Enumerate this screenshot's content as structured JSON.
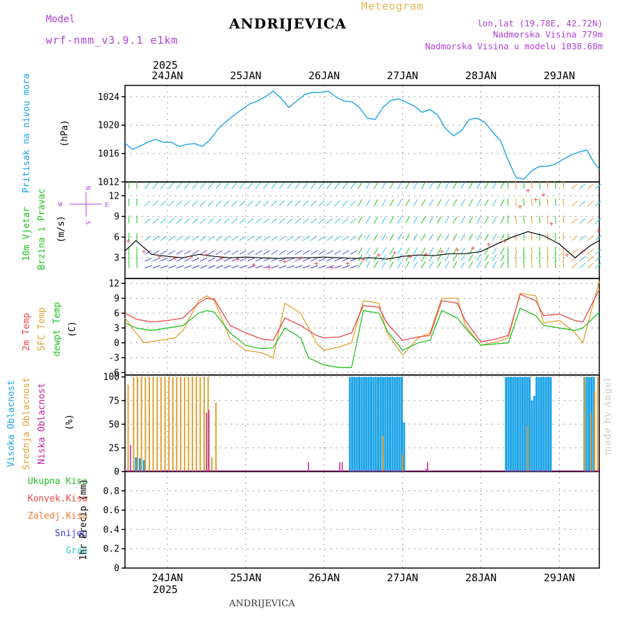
{
  "header": {
    "heading": "Meteogram",
    "title": "ANDRIJEVICA",
    "model_label": "Model",
    "model_name": "wrf-nmm_v3.9.1 e1km",
    "lonlat": "lon,lat (19.78E, 42.72N)",
    "elevation": "Nadmorska Visina 779m",
    "elevation_model": "Nadmorska Visina u modelu 1038.68m",
    "credit": "made by Angel",
    "bottom_title": "ANDRIJEVICA"
  },
  "time_axis": {
    "year": "2025",
    "day_labels": [
      "24JAN",
      "25JAN",
      "26JAN",
      "27JAN",
      "28JAN",
      "29JAN"
    ],
    "day_positions": [
      1,
      2,
      3,
      4,
      5,
      6
    ],
    "range": [
      0.46,
      6.51
    ]
  },
  "colors": {
    "pressure": "#1aa3e8",
    "wind_speed": "#000000",
    "gust": "#e84848",
    "temp2m": "#e84848",
    "sfc_temp": "#e0a030",
    "dewpoint": "#22c022",
    "high_cloud": "#1aa3e8",
    "mid_cloud": "#e0a030",
    "low_cloud": "#c020a0",
    "total_precip": "#22c022",
    "conv_precip": "#e84848",
    "frozen_precip": "#f08030",
    "snow": "#4040e0",
    "hail": "#30c8c8"
  },
  "panels": {
    "pressure": {
      "ylabel": "Pritisak na nivou mora",
      "unit": "(hPa)",
      "ylim": [
        1012,
        1025.6
      ],
      "yticks": [
        1012,
        1016,
        1020,
        1024
      ]
    },
    "wind": {
      "ylabel1": "10m Vjetar",
      "ylabel2": "Brzina i Pravac",
      "unit": "(m/s)",
      "compass": {
        "n": "N",
        "s": "S",
        "w": "W",
        "e": "E"
      },
      "ylim": [
        0,
        14
      ],
      "yticks": [
        3,
        6,
        9,
        12
      ]
    },
    "temperature": {
      "ylabel1": "2m Temp",
      "ylabel2": "SFC Temp",
      "ylabel3": "dewpt Temp",
      "unit": "(C)",
      "ylim": [
        -6.5,
        13
      ],
      "yticks": [
        -6,
        -3,
        0,
        3,
        6,
        9,
        12
      ]
    },
    "clouds": {
      "ylabel1": "Visoka Oblacnost",
      "ylabel2": "Srednja Oblacnost",
      "ylabel3": "Niska Oblacnost",
      "unit": "(%)",
      "ylim": [
        0,
        102
      ],
      "yticks": [
        0,
        25,
        50,
        75,
        100
      ]
    },
    "precip": {
      "unit": "1hr Precip (mm)",
      "ylim": [
        0,
        1
      ],
      "yticks": [
        "0",
        "0.2",
        "0.4",
        "0.6",
        "0.8"
      ],
      "legend": [
        "Ukupna Kisa",
        "Konvek.Kisa",
        "Zaledj.Kisa",
        "Snijeg",
        "Grad"
      ]
    }
  },
  "chart_data": [
    {
      "type": "line",
      "name": "pressure",
      "x": [
        0.46,
        0.55,
        0.65,
        0.75,
        0.85,
        0.95,
        1.05,
        1.15,
        1.25,
        1.35,
        1.45,
        1.55,
        1.65,
        1.75,
        1.85,
        1.95,
        2.05,
        2.15,
        2.25,
        2.35,
        2.45,
        2.55,
        2.65,
        2.75,
        2.85,
        2.95,
        3.05,
        3.15,
        3.25,
        3.35,
        3.45,
        3.55,
        3.65,
        3.75,
        3.85,
        3.95,
        4.05,
        4.15,
        4.25,
        4.35,
        4.45,
        4.55,
        4.65,
        4.75,
        4.85,
        4.95,
        5.05,
        5.15,
        5.25,
        5.35,
        5.45,
        5.55,
        5.65,
        5.75,
        5.85,
        5.95,
        6.05,
        6.15,
        6.25,
        6.35,
        6.45,
        6.51
      ],
      "values": [
        1017.5,
        1016.6,
        1017.0,
        1017.6,
        1018.0,
        1017.6,
        1017.6,
        1017.0,
        1017.3,
        1017.4,
        1017.0,
        1018.0,
        1019.5,
        1020.5,
        1021.4,
        1022.2,
        1023.0,
        1023.4,
        1024.0,
        1024.8,
        1023.8,
        1022.5,
        1023.4,
        1024.3,
        1024.6,
        1024.6,
        1024.8,
        1024.0,
        1023.4,
        1023.3,
        1022.5,
        1021.0,
        1020.8,
        1022.5,
        1023.5,
        1023.7,
        1023.2,
        1022.7,
        1021.8,
        1022.2,
        1021.4,
        1019.5,
        1018.5,
        1019.2,
        1020.8,
        1021.0,
        1020.4,
        1019.0,
        1017.8,
        1015.0,
        1012.6,
        1012.4,
        1013.6,
        1014.2,
        1014.2,
        1014.5,
        1015.2,
        1015.8,
        1016.2,
        1016.5,
        1014.6,
        1013.8
      ]
    },
    {
      "type": "line",
      "name": "wind_speed",
      "x": [
        0.46,
        0.6,
        0.8,
        1.0,
        1.2,
        1.4,
        1.6,
        1.8,
        2.0,
        2.2,
        2.4,
        2.6,
        2.8,
        3.0,
        3.2,
        3.4,
        3.6,
        3.8,
        4.0,
        4.2,
        4.4,
        4.6,
        4.8,
        5.0,
        5.2,
        5.4,
        5.6,
        5.8,
        6.0,
        6.2,
        6.4,
        6.51
      ],
      "values": [
        4.0,
        5.5,
        3.5,
        3.2,
        3.0,
        3.5,
        3.2,
        3.0,
        3.1,
        3.0,
        2.9,
        3.0,
        3.0,
        3.1,
        3.0,
        2.9,
        3.0,
        2.8,
        3.2,
        3.4,
        3.3,
        3.6,
        3.6,
        3.9,
        5.0,
        6.0,
        6.8,
        6.2,
        5.0,
        3.0,
        4.8,
        5.5
      ]
    },
    {
      "type": "scatter",
      "name": "gust",
      "x": [
        0.5,
        0.7,
        0.9,
        1.1,
        1.3,
        1.5,
        1.7,
        1.9,
        2.1,
        2.3,
        2.5,
        2.7,
        2.9,
        3.1,
        3.3,
        3.5,
        3.7,
        3.9,
        4.1,
        4.3,
        4.5,
        4.7,
        4.9,
        5.1,
        5.3,
        5.5,
        5.6,
        5.7,
        5.8,
        5.9,
        6.1,
        6.3,
        6.5
      ],
      "values": [
        5.5,
        4.0,
        3.2,
        3.0,
        3.2,
        3.5,
        3.0,
        2.8,
        2.0,
        1.6,
        2.5,
        3.0,
        2.2,
        1.6,
        2.2,
        2.8,
        3.5,
        3.8,
        3.2,
        3.6,
        4.0,
        4.2,
        4.5,
        5.0,
        5.5,
        10.5,
        12.8,
        11.5,
        12.2,
        8.0,
        3.5,
        4.0,
        7.0
      ]
    },
    {
      "type": "line",
      "name": "2m Temp",
      "x": [
        0.46,
        0.6,
        0.8,
        1.0,
        1.2,
        1.4,
        1.5,
        1.6,
        1.8,
        2.0,
        2.2,
        2.35,
        2.5,
        2.7,
        2.9,
        3.0,
        3.2,
        3.35,
        3.5,
        3.7,
        3.8,
        4.0,
        4.2,
        4.35,
        4.5,
        4.7,
        4.8,
        5.0,
        5.2,
        5.35,
        5.5,
        5.7,
        5.8,
        6.0,
        6.2,
        6.3,
        6.51
      ],
      "values": [
        6.0,
        4.8,
        4.2,
        4.5,
        5.0,
        8.0,
        9.0,
        8.8,
        3.5,
        2.0,
        0.8,
        0.5,
        5.0,
        3.5,
        1.5,
        1.0,
        1.2,
        2.0,
        7.5,
        7.2,
        4.0,
        0.5,
        1.2,
        1.5,
        8.5,
        8.0,
        4.5,
        0.2,
        0.8,
        1.5,
        9.8,
        8.5,
        5.5,
        5.8,
        4.5,
        4.2,
        10.8
      ]
    },
    {
      "type": "line",
      "name": "SFC Temp",
      "x": [
        0.46,
        0.6,
        0.7,
        0.9,
        1.1,
        1.2,
        1.4,
        1.5,
        1.6,
        1.8,
        2.0,
        2.2,
        2.35,
        2.5,
        2.7,
        2.9,
        3.0,
        3.2,
        3.35,
        3.5,
        3.7,
        3.8,
        4.0,
        4.2,
        4.35,
        4.5,
        4.7,
        4.8,
        5.0,
        5.2,
        5.35,
        5.5,
        5.7,
        5.8,
        6.0,
        6.2,
        6.3,
        6.51
      ],
      "values": [
        5.0,
        2.0,
        0.0,
        0.5,
        1.0,
        2.5,
        8.5,
        9.5,
        8.5,
        0.8,
        -1.5,
        -2.0,
        -3.0,
        8.0,
        6.0,
        0.0,
        -1.5,
        -0.8,
        0.0,
        8.5,
        8.0,
        2.0,
        -2.5,
        1.0,
        2.0,
        9.0,
        9.0,
        3.5,
        -0.5,
        0.2,
        1.0,
        10.0,
        9.5,
        4.0,
        4.5,
        2.0,
        0.0,
        12.5
      ]
    },
    {
      "type": "line",
      "name": "dewpt Temp",
      "x": [
        0.46,
        0.6,
        0.8,
        1.0,
        1.2,
        1.4,
        1.5,
        1.6,
        1.8,
        2.0,
        2.2,
        2.35,
        2.5,
        2.7,
        2.8,
        3.0,
        3.2,
        3.35,
        3.5,
        3.7,
        3.8,
        4.0,
        4.2,
        4.35,
        4.5,
        4.7,
        4.8,
        5.0,
        5.2,
        5.35,
        5.5,
        5.7,
        5.8,
        6.0,
        6.2,
        6.3,
        6.51
      ],
      "values": [
        4.0,
        3.0,
        2.5,
        3.0,
        3.5,
        6.0,
        6.5,
        6.2,
        2.0,
        -0.5,
        -1.2,
        -1.0,
        3.0,
        1.0,
        -3.0,
        -4.5,
        -5.0,
        -5.0,
        6.5,
        6.0,
        2.5,
        -1.5,
        0.0,
        0.5,
        6.5,
        5.0,
        3.0,
        -0.5,
        -0.2,
        0.0,
        7.0,
        5.5,
        3.5,
        3.0,
        2.5,
        3.0,
        6.2
      ]
    },
    {
      "type": "bar",
      "name": "Visoka Oblacnost",
      "x": [
        0.6,
        0.65,
        0.7,
        3.33,
        3.36,
        3.39,
        3.42,
        3.45,
        3.48,
        3.51,
        3.54,
        3.57,
        3.6,
        3.63,
        3.66,
        3.69,
        3.72,
        3.75,
        3.78,
        3.81,
        3.84,
        3.87,
        3.9,
        3.93,
        3.96,
        3.99,
        4.02,
        5.32,
        5.35,
        5.38,
        5.41,
        5.44,
        5.47,
        5.5,
        5.53,
        5.56,
        5.59,
        5.62,
        5.65,
        5.68,
        5.71,
        5.74,
        5.77,
        5.8,
        5.83,
        5.86,
        5.89,
        6.32,
        6.35,
        6.38,
        6.41,
        6.44
      ],
      "values": [
        15,
        14,
        12,
        100,
        100,
        100,
        100,
        100,
        100,
        100,
        100,
        100,
        100,
        100,
        100,
        100,
        100,
        100,
        100,
        100,
        100,
        100,
        100,
        100,
        100,
        100,
        52,
        100,
        100,
        100,
        100,
        100,
        100,
        100,
        100,
        100,
        100,
        100,
        75,
        80,
        100,
        100,
        100,
        100,
        100,
        100,
        100,
        100,
        100,
        100,
        100,
        100
      ]
    },
    {
      "type": "bar",
      "name": "Srednja Oblacnost",
      "x": [
        0.5,
        0.57,
        0.62,
        0.67,
        0.72,
        0.77,
        0.82,
        0.87,
        0.92,
        0.97,
        1.02,
        1.07,
        1.12,
        1.17,
        1.22,
        1.27,
        1.32,
        1.37,
        1.42,
        1.47,
        1.52,
        1.57,
        1.62,
        3.75,
        4.0,
        5.6,
        6.32,
        6.4,
        6.45,
        6.49
      ],
      "values": [
        92,
        100,
        100,
        100,
        100,
        100,
        100,
        100,
        100,
        100,
        100,
        100,
        100,
        100,
        100,
        100,
        100,
        100,
        100,
        100,
        100,
        15,
        73,
        38,
        18,
        48,
        100,
        62,
        85,
        100
      ]
    },
    {
      "type": "bar",
      "name": "Niska Oblacnost",
      "x": [
        0.53,
        1.5,
        1.53,
        2.8,
        3.2,
        3.23,
        4.3,
        4.32
      ],
      "values": [
        28,
        62,
        65,
        10,
        10,
        10,
        3,
        10
      ]
    },
    {
      "type": "bar",
      "name": "1hr Precip",
      "x": [],
      "values": []
    }
  ]
}
